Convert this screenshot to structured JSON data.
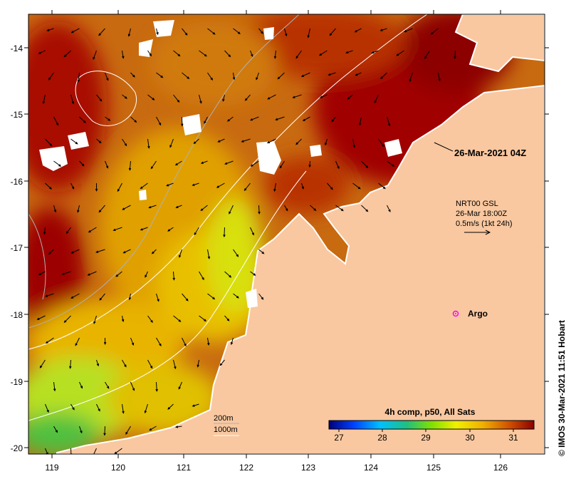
{
  "map": {
    "title_date": "26-Mar-2021 04Z",
    "current_model": "NRT00 GSL",
    "current_time": "26-Mar 18:00Z",
    "current_scale": "0.5m/s (1kt 24h)",
    "argo_label": "Argo",
    "depth_contour_1": "200m",
    "depth_contour_2": "1000m",
    "colorbar_title": "4h comp, p50, All Sats",
    "credit": "© IMOS 30-Mar-2021 11:51 Hobart",
    "lon_ticks": [
      "119",
      "120",
      "121",
      "122",
      "123",
      "124",
      "125",
      "126"
    ],
    "lat_ticks": [
      "-14",
      "-15",
      "-16",
      "-17",
      "-18",
      "-19",
      "-20"
    ],
    "colorbar_ticks": [
      "27",
      "28",
      "29",
      "30",
      "31"
    ],
    "colors": {
      "land": "#f9c8a0",
      "sst_hot": "#a00000",
      "sst_warm": "#c85a00",
      "sst_mid": "#e6a000",
      "sst_cool": "#c8e000",
      "sst_cold": "#40c040",
      "argo": "#ff00ff"
    }
  }
}
